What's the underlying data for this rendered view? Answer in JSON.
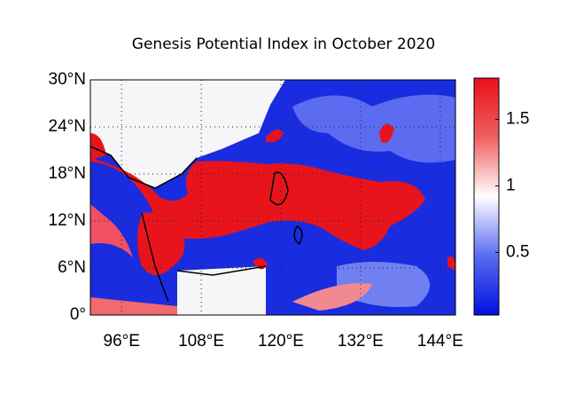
{
  "chart_data": {
    "type": "map",
    "title": "Genesis Potential Index in October 2020",
    "xlim": [
      91.3,
      146.3
    ],
    "ylim": [
      0,
      30
    ],
    "xticks": [
      {
        "value": 96,
        "label": "96°E"
      },
      {
        "value": 108,
        "label": "108°E"
      },
      {
        "value": 120,
        "label": "120°E"
      },
      {
        "value": 132,
        "label": "132°E"
      },
      {
        "value": 144,
        "label": "144°E"
      }
    ],
    "yticks": [
      {
        "value": 0,
        "label": "0°"
      },
      {
        "value": 6,
        "label": "6°N"
      },
      {
        "value": 12,
        "label": "12°N"
      },
      {
        "value": 18,
        "label": "18°N"
      },
      {
        "value": 24,
        "label": "24°N"
      },
      {
        "value": 30,
        "label": "30°N"
      }
    ],
    "grid": true,
    "clim": [
      0.03,
      1.81
    ],
    "cticks": [
      0.5,
      1,
      1.5
    ],
    "colormap": [
      "#0010e0",
      "#5a6cf0",
      "#ffffff",
      "#f06060",
      "#e8101a"
    ]
  }
}
